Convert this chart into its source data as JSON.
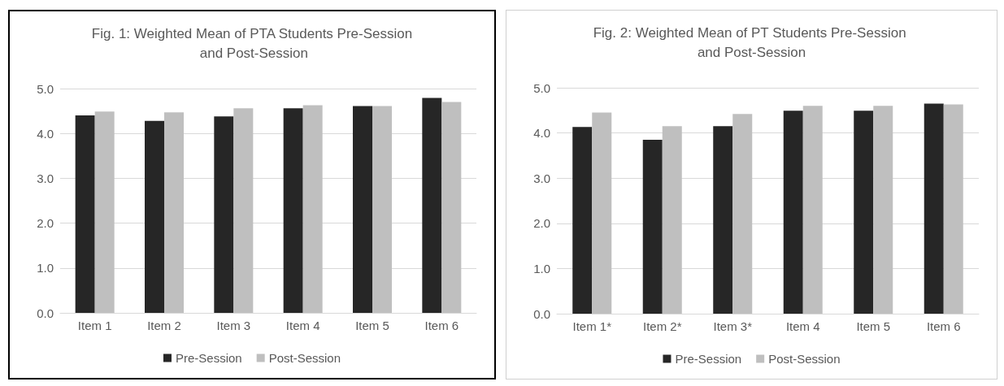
{
  "chart_data": [
    {
      "type": "bar",
      "title": "Fig. 1: Weighted Mean of PTA Students Pre-Session and Post-Session",
      "categories": [
        "Item 1",
        "Item 2",
        "Item 3",
        "Item 4",
        "Item 5",
        "Item 6"
      ],
      "series": [
        {
          "name": "Pre-Session",
          "color": "#262626",
          "values": [
            4.4,
            4.28,
            4.38,
            4.56,
            4.61,
            4.79
          ]
        },
        {
          "name": "Post-Session",
          "color": "#bfbfbf",
          "values": [
            4.49,
            4.47,
            4.56,
            4.63,
            4.61,
            4.7
          ]
        }
      ],
      "ylim": [
        0,
        5
      ],
      "yticks": [
        {
          "value": 0,
          "label": "0.0"
        },
        {
          "value": 1,
          "label": "1.0"
        },
        {
          "value": 2,
          "label": "2.0"
        },
        {
          "value": 3,
          "label": "3.0"
        },
        {
          "value": 4,
          "label": "4.0"
        },
        {
          "value": 5,
          "label": "5.0"
        }
      ],
      "grid": "y",
      "legend": "bottom"
    },
    {
      "type": "bar",
      "title": "Fig. 2: Weighted Mean of PT Students Pre-Session and Post-Session",
      "categories": [
        "Item 1*",
        "Item 2*",
        "Item 3*",
        "Item 4",
        "Item 5",
        "Item 6"
      ],
      "series": [
        {
          "name": "Pre-Session",
          "color": "#262626",
          "values": [
            4.13,
            3.85,
            4.15,
            4.49,
            4.49,
            4.65
          ]
        },
        {
          "name": "Post-Session",
          "color": "#bfbfbf",
          "values": [
            4.45,
            4.15,
            4.42,
            4.6,
            4.6,
            4.63
          ]
        }
      ],
      "ylim": [
        0,
        5
      ],
      "yticks": [
        {
          "value": 0,
          "label": "0.0"
        },
        {
          "value": 1,
          "label": "1.0"
        },
        {
          "value": 2,
          "label": "2.0"
        },
        {
          "value": 3,
          "label": "3.0"
        },
        {
          "value": 4,
          "label": "4.0"
        },
        {
          "value": 5,
          "label": "5.0"
        }
      ],
      "grid": "y",
      "legend": "bottom"
    }
  ]
}
